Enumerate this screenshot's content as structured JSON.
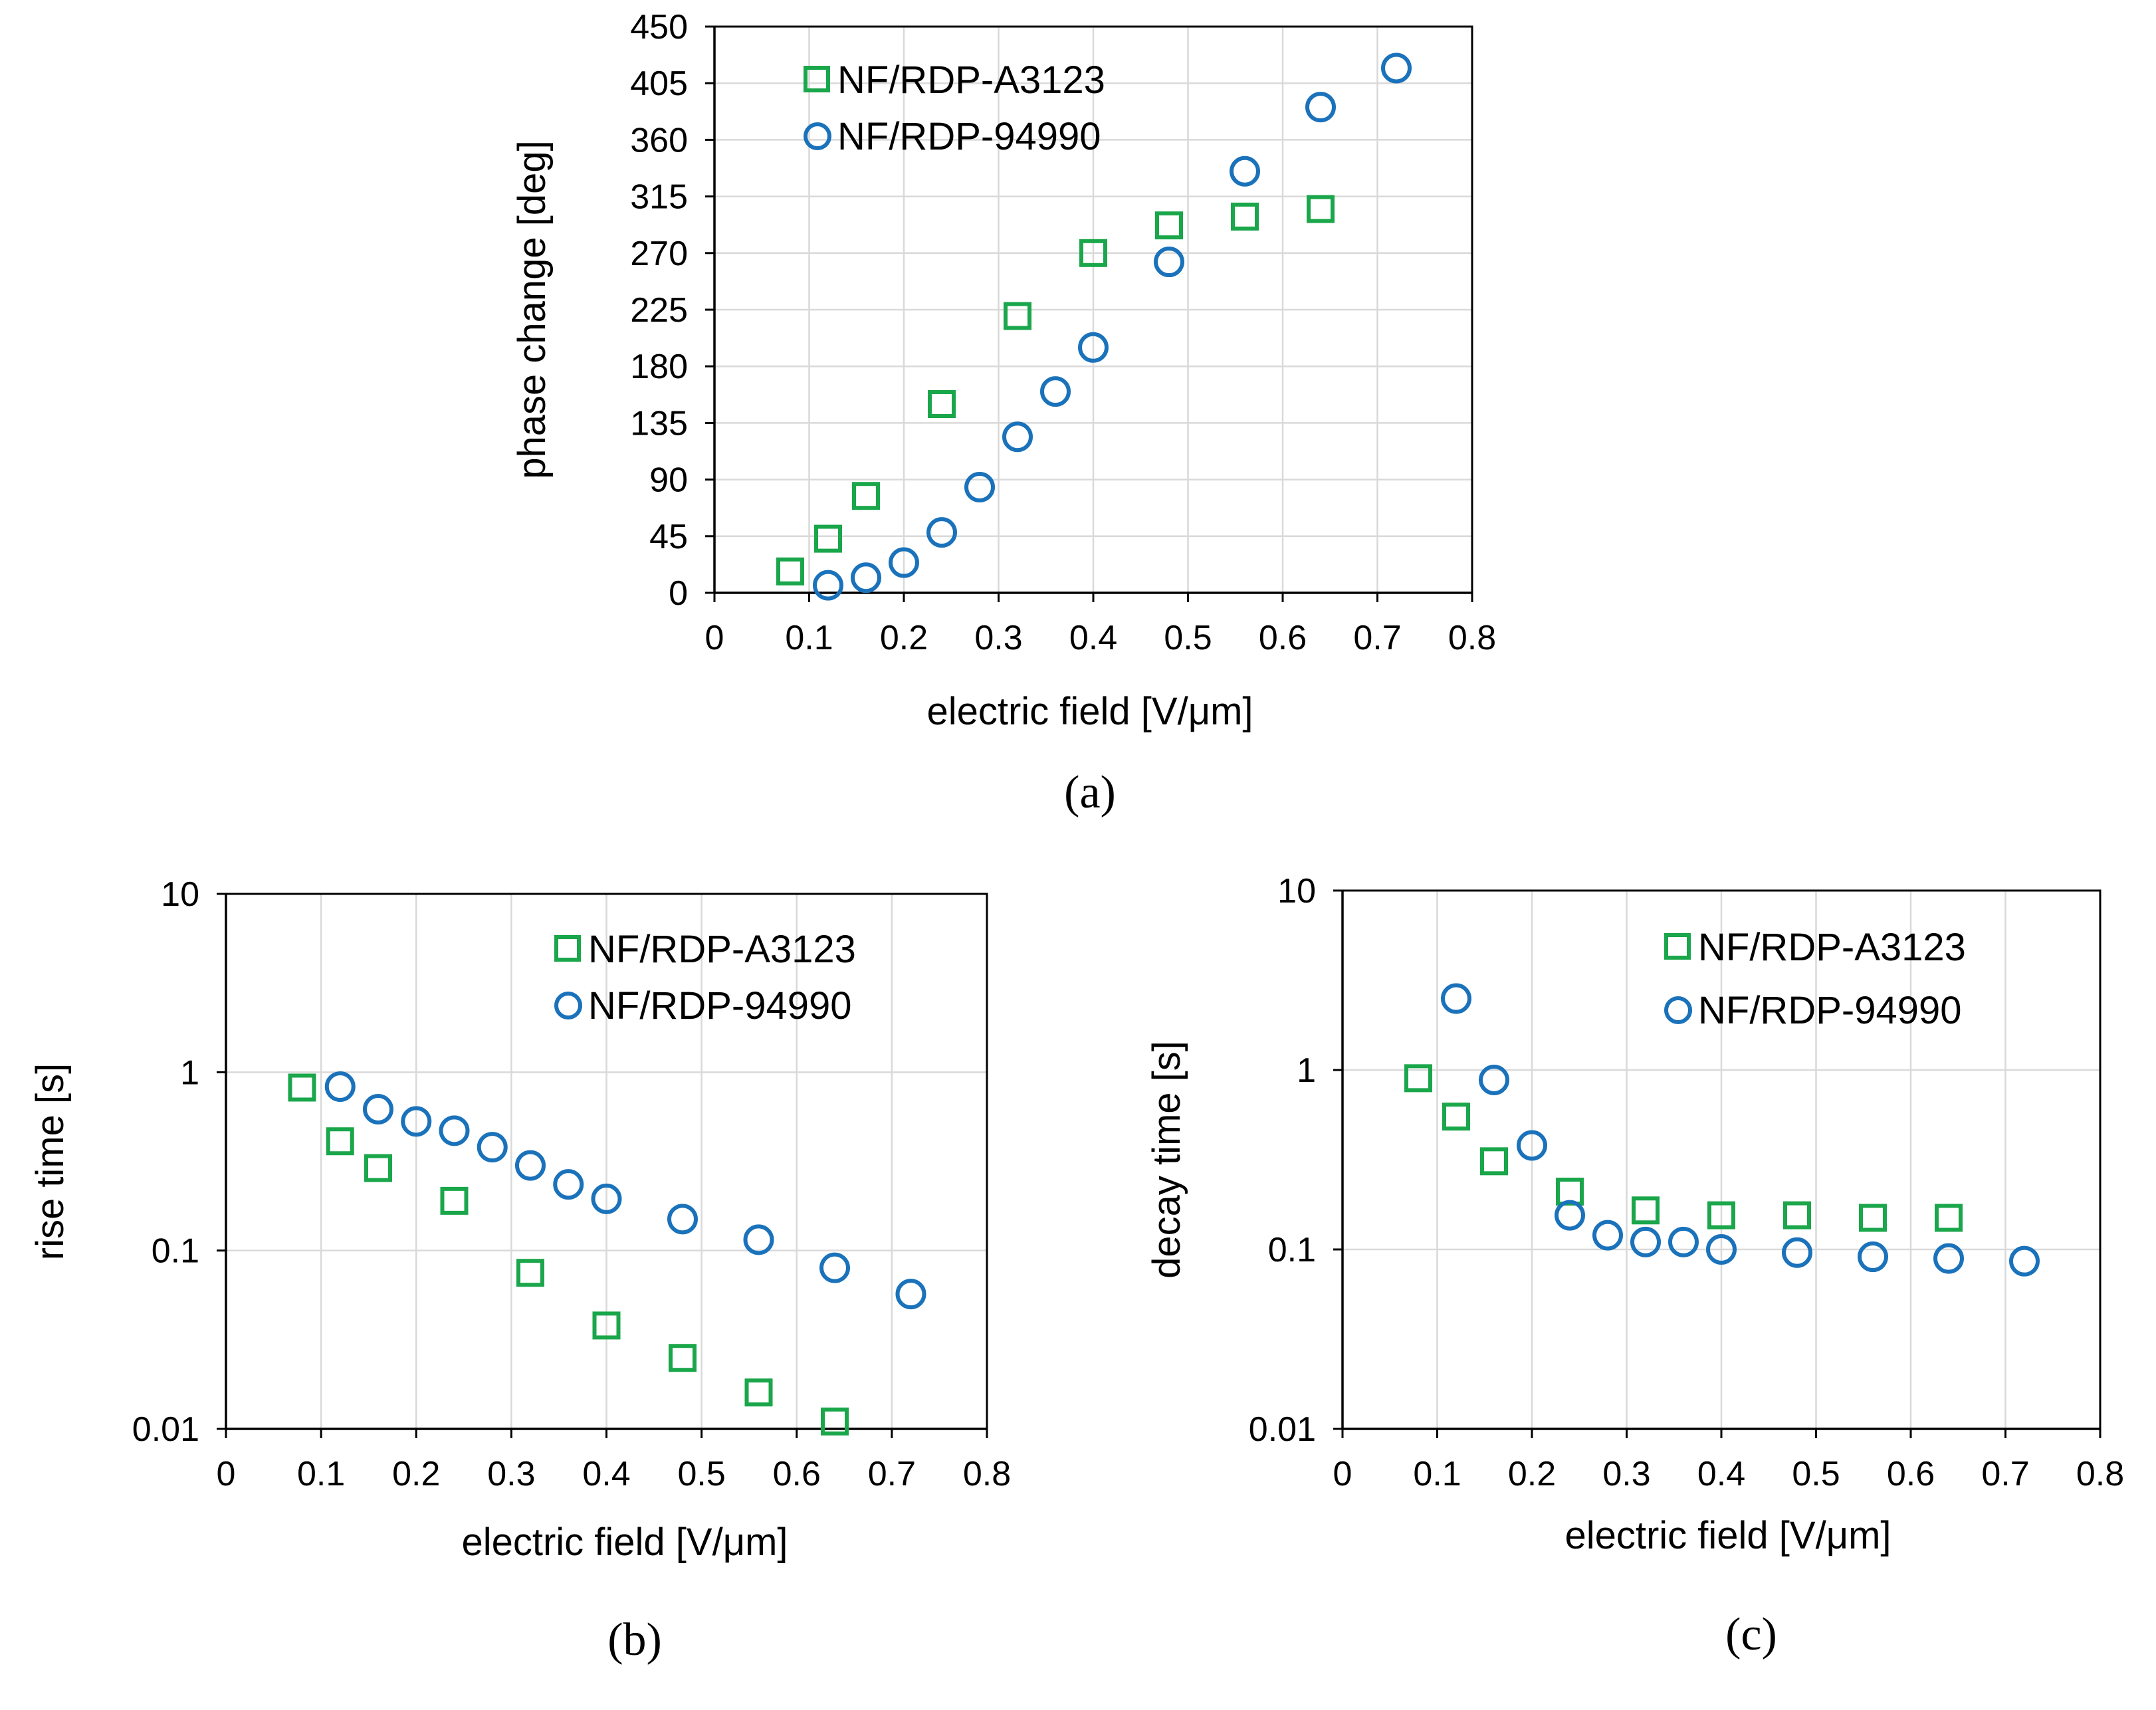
{
  "chart_data": [
    {
      "type": "scatter",
      "panel": "(a)",
      "caption": "(a)",
      "xlabel": "electric field [V/μm]",
      "ylabel": "phase change [deg]",
      "xlim": [
        0,
        0.8
      ],
      "ylim": [
        0,
        450
      ],
      "yscale": "linear",
      "xticks": [
        "0",
        "0.1",
        "0.2",
        "0.3",
        "0.4",
        "0.5",
        "0.6",
        "0.7",
        "0.8"
      ],
      "yticks": [
        "0",
        "45",
        "90",
        "135",
        "180",
        "225",
        "270",
        "315",
        "360",
        "405",
        "450"
      ],
      "grid": true,
      "legend_position": "top-left",
      "series": [
        {
          "name": "NF/RDP-A3123",
          "marker": "square",
          "color": "#1aa64a",
          "points": [
            [
              0.08,
              17
            ],
            [
              0.12,
              43
            ],
            [
              0.16,
              77
            ],
            [
              0.24,
              150
            ],
            [
              0.32,
              220
            ],
            [
              0.4,
              270
            ],
            [
              0.48,
              292
            ],
            [
              0.56,
              299
            ],
            [
              0.64,
              305
            ]
          ]
        },
        {
          "name": "NF/RDP-94990",
          "marker": "circle",
          "color": "#1a72bb",
          "points": [
            [
              0.12,
              6
            ],
            [
              0.16,
              12
            ],
            [
              0.2,
              24
            ],
            [
              0.24,
              48
            ],
            [
              0.28,
              84
            ],
            [
              0.32,
              124
            ],
            [
              0.36,
              160
            ],
            [
              0.4,
              195
            ],
            [
              0.48,
              263
            ],
            [
              0.56,
              335
            ],
            [
              0.64,
              386
            ],
            [
              0.72,
              417
            ]
          ]
        }
      ]
    },
    {
      "type": "scatter",
      "panel": "(b)",
      "caption": "(b)",
      "xlabel": "electric field [V/μm]",
      "ylabel": "rise time [s]",
      "xlim": [
        0,
        0.8
      ],
      "ylim": [
        0.01,
        10
      ],
      "yscale": "log",
      "xticks": [
        "0",
        "0.1",
        "0.2",
        "0.3",
        "0.4",
        "0.5",
        "0.6",
        "0.7",
        "0.8"
      ],
      "yticks": [
        "0.01",
        "0.1",
        "1",
        "10"
      ],
      "grid": true,
      "legend_position": "top-right",
      "series": [
        {
          "name": "NF/RDP-A3123",
          "marker": "square",
          "color": "#1aa64a",
          "points": [
            [
              0.08,
              0.82
            ],
            [
              0.12,
              0.41
            ],
            [
              0.16,
              0.29
            ],
            [
              0.24,
              0.19
            ],
            [
              0.32,
              0.075
            ],
            [
              0.4,
              0.038
            ],
            [
              0.48,
              0.025
            ],
            [
              0.56,
              0.016
            ],
            [
              0.64,
              0.011
            ]
          ]
        },
        {
          "name": "NF/RDP-94990",
          "marker": "circle",
          "color": "#1a72bb",
          "points": [
            [
              0.12,
              0.83
            ],
            [
              0.16,
              0.62
            ],
            [
              0.2,
              0.53
            ],
            [
              0.24,
              0.47
            ],
            [
              0.28,
              0.38
            ],
            [
              0.32,
              0.3
            ],
            [
              0.36,
              0.235
            ],
            [
              0.4,
              0.195
            ],
            [
              0.48,
              0.15
            ],
            [
              0.56,
              0.115
            ],
            [
              0.64,
              0.08
            ],
            [
              0.72,
              0.057
            ]
          ]
        }
      ]
    },
    {
      "type": "scatter",
      "panel": "(c)",
      "caption": "(c)",
      "xlabel": "electric field [V/μm]",
      "ylabel": "decay time [s]",
      "xlim": [
        0,
        0.8
      ],
      "ylim": [
        0.01,
        10
      ],
      "yscale": "log",
      "xticks": [
        "0",
        "0.1",
        "0.2",
        "0.3",
        "0.4",
        "0.5",
        "0.6",
        "0.7",
        "0.8"
      ],
      "yticks": [
        "0.01",
        "0.1",
        "1",
        "10"
      ],
      "grid": true,
      "legend_position": "top-right",
      "series": [
        {
          "name": "NF/RDP-A3123",
          "marker": "square",
          "color": "#1aa64a",
          "points": [
            [
              0.08,
              0.9
            ],
            [
              0.12,
              0.55
            ],
            [
              0.16,
              0.31
            ],
            [
              0.24,
              0.21
            ],
            [
              0.32,
              0.165
            ],
            [
              0.4,
              0.155
            ],
            [
              0.48,
              0.155
            ],
            [
              0.56,
              0.15
            ],
            [
              0.64,
              0.15
            ]
          ]
        },
        {
          "name": "NF/RDP-94990",
          "marker": "circle",
          "color": "#1a72bb",
          "points": [
            [
              0.12,
              2.5
            ],
            [
              0.16,
              0.88
            ],
            [
              0.2,
              0.38
            ],
            [
              0.24,
              0.155
            ],
            [
              0.28,
              0.12
            ],
            [
              0.32,
              0.11
            ],
            [
              0.36,
              0.11
            ],
            [
              0.4,
              0.1
            ],
            [
              0.48,
              0.096
            ],
            [
              0.56,
              0.091
            ],
            [
              0.64,
              0.089
            ],
            [
              0.72,
              0.086
            ]
          ]
        }
      ]
    }
  ]
}
